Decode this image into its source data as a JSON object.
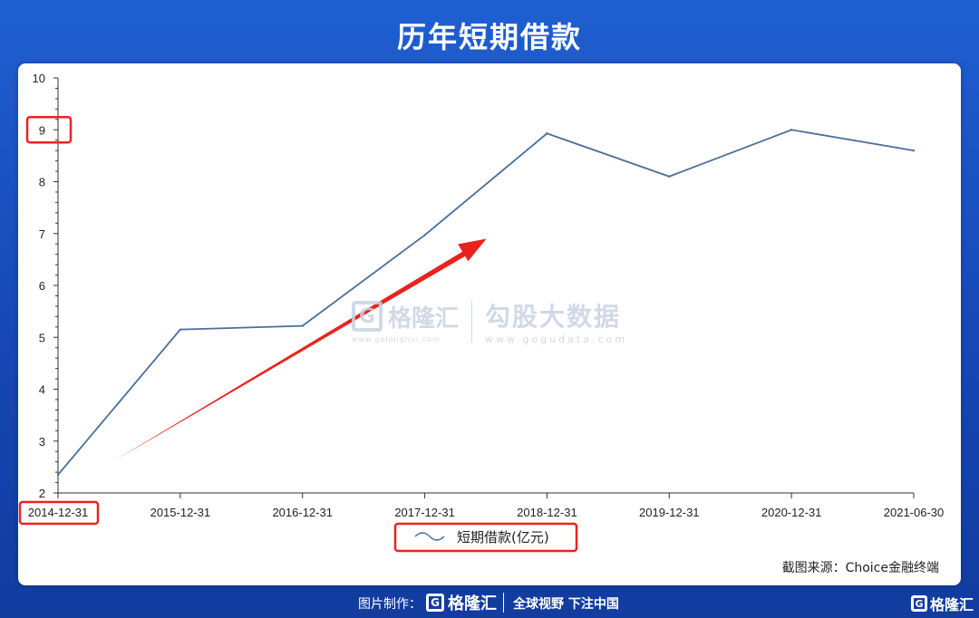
{
  "title": "历年短期借款",
  "source": "截图来源：Choice金融终端",
  "watermark": {
    "logo_text": "格隆汇",
    "logo_url": "www.gelonghui.com",
    "right_text": "勾股大数据",
    "right_url": "www.gogudata.com"
  },
  "footer": {
    "credit": "图片制作：",
    "logo_text": "格隆汇",
    "slogan": "全球视野 下注中国",
    "brand": "格隆汇"
  },
  "colors": {
    "background": "#1747b5",
    "line": "#4a6f9a",
    "arrow": "#e8231e",
    "highlight_box": "#e8231e"
  },
  "chart_data": {
    "type": "line",
    "categories": [
      "2014-12-31",
      "2015-12-31",
      "2016-12-31",
      "2017-12-31",
      "2018-12-31",
      "2019-12-31",
      "2020-12-31",
      "2021-06-30"
    ],
    "series": [
      {
        "name": "短期借款(亿元)",
        "values": [
          2.35,
          5.15,
          5.22,
          6.97,
          8.93,
          8.1,
          9.0,
          8.6
        ]
      }
    ],
    "ylim": [
      2,
      10
    ],
    "yticks": [
      2,
      3,
      4,
      5,
      6,
      7,
      8,
      9,
      10
    ],
    "legend": "bottom-center",
    "grid": false,
    "annotations": {
      "trend_arrow": {
        "from": [
          "2014-12-31",
          2.6
        ],
        "to": [
          "2017-12-31",
          6.9
        ]
      },
      "highlighted": [
        "ytick-9",
        "xtick-2014-12-31",
        "legend"
      ]
    }
  }
}
